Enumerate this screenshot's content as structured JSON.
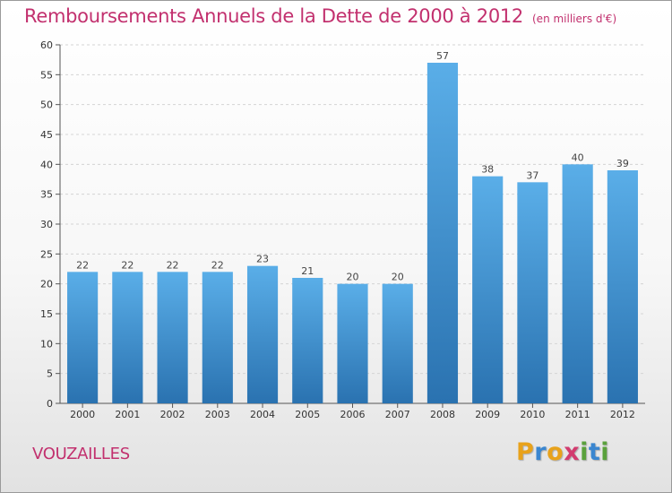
{
  "title": "Remboursements Annuels de la Dette de 2000 à 2012",
  "unit_note": "(en milliers d'€)",
  "commune": "VOUZAILLES",
  "logo": {
    "letters": [
      "P",
      "r",
      "o",
      "x",
      "i",
      "t",
      "i"
    ],
    "colors": [
      "#e8a21b",
      "#3a86d0",
      "#e8a21b",
      "#d23b6e",
      "#5aa13c",
      "#3a86d0",
      "#5aa13c"
    ]
  },
  "colors": {
    "title": "#c2306e",
    "bar_top": "#5aaee8",
    "bar_bottom": "#2a72b0"
  },
  "chart_data": {
    "type": "bar",
    "categories": [
      "2000",
      "2001",
      "2002",
      "2003",
      "2004",
      "2005",
      "2006",
      "2007",
      "2008",
      "2009",
      "2010",
      "2011",
      "2012"
    ],
    "values": [
      22,
      22,
      22,
      22,
      23,
      21,
      20,
      20,
      57,
      38,
      37,
      40,
      39
    ],
    "title": "Remboursements Annuels de la Dette de 2000 à 2012",
    "xlabel": "",
    "ylabel": "",
    "ylim": [
      0,
      60
    ],
    "yticks": [
      0,
      5,
      10,
      15,
      20,
      25,
      30,
      35,
      40,
      45,
      50,
      55,
      60
    ],
    "grid": true,
    "data_labels": true
  }
}
